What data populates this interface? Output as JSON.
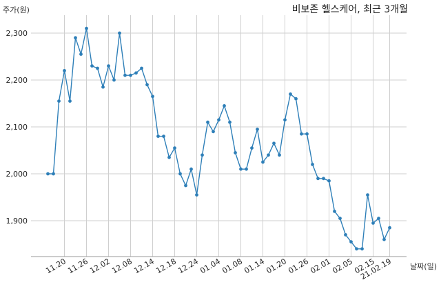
{
  "chart_data": {
    "type": "line",
    "title": "비보존 헬스케어, 최근 3개월",
    "ylabel": "주가(원)",
    "xlabel": "날짜(일)",
    "ylim": [
      1820,
      2345
    ],
    "yticks": [
      1900,
      2000,
      2100,
      2200,
      2300
    ],
    "ytick_labels": [
      "1,900",
      "2,000",
      "2,100",
      "2,200",
      "2,300"
    ],
    "xticks": [
      {
        "index": 3,
        "label": "11.20"
      },
      {
        "index": 7,
        "label": "11.26"
      },
      {
        "index": 11,
        "label": "12.02"
      },
      {
        "index": 15,
        "label": "12.08"
      },
      {
        "index": 19,
        "label": "12.14"
      },
      {
        "index": 23,
        "label": "12.18"
      },
      {
        "index": 27,
        "label": "12.24"
      },
      {
        "index": 31,
        "label": "01.04"
      },
      {
        "index": 35,
        "label": "01.08"
      },
      {
        "index": 39,
        "label": "01.14"
      },
      {
        "index": 43,
        "label": "01.20"
      },
      {
        "index": 47,
        "label": "01.26"
      },
      {
        "index": 51,
        "label": "02.01"
      },
      {
        "index": 55,
        "label": "02.05"
      },
      {
        "index": 59,
        "label": "02.15"
      },
      {
        "index": 62,
        "label": "21.02.19"
      }
    ],
    "grid": true,
    "color": "#2e7fb8",
    "series": [
      {
        "values": [
          2000,
          2000,
          2155,
          2220,
          2155,
          2290,
          2255,
          2310,
          2230,
          2225,
          2185,
          2230,
          2200,
          2300,
          2210,
          2210,
          2215,
          2225,
          2190,
          2165,
          2080,
          2080,
          2035,
          2055,
          2000,
          1975,
          2010,
          1955,
          2040,
          2110,
          2090,
          2115,
          2145,
          2110,
          2045,
          2010,
          2010,
          2055,
          2095,
          2025,
          2040,
          2065,
          2040,
          2115,
          2170,
          2160,
          2085,
          2085,
          2020,
          1990,
          1990,
          1985,
          1920,
          1905,
          1870,
          1855,
          1840,
          1840,
          1955,
          1895,
          1905,
          1860,
          1885
        ]
      }
    ]
  }
}
